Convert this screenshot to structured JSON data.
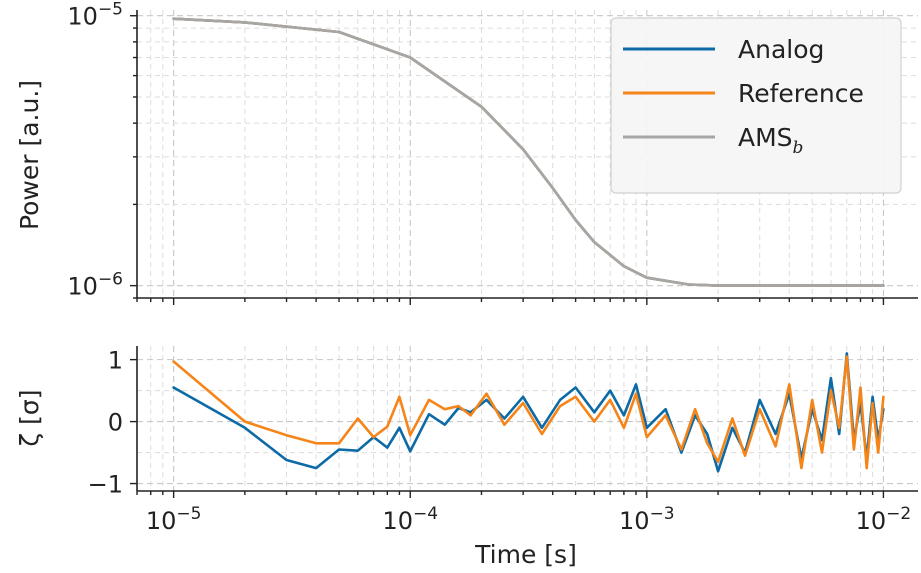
{
  "chart_data": [
    {
      "type": "line",
      "xlabel": "",
      "ylabel": "Power [a.u.]",
      "x_scale": "log",
      "y_scale": "log",
      "xlim": [
        7e-06,
        0.014
      ],
      "ylim": [
        9e-07,
        1.05e-05
      ],
      "grid": true,
      "legend_position": "top-right",
      "yticks": [
        {
          "value": 1e-05,
          "base": "10",
          "exp": "−5"
        },
        {
          "value": 1e-06,
          "base": "10",
          "exp": "−6"
        }
      ],
      "series": [
        {
          "name": "Analog",
          "color": "#0c6aa6",
          "x": [
            1e-05,
            2e-05,
            5e-05,
            0.0001,
            0.0002,
            0.0003,
            0.0004,
            0.0005,
            0.0006,
            0.0008,
            0.001,
            0.0015,
            0.002,
            0.003,
            0.005,
            0.007,
            0.01
          ],
          "y": [
            9.75e-06,
            9.45e-06,
            8.7e-06,
            7e-06,
            4.6e-06,
            3.2e-06,
            2.3e-06,
            1.75e-06,
            1.45e-06,
            1.18e-06,
            1.07e-06,
            1.01e-06,
            1e-06,
            1e-06,
            1e-06,
            1e-06,
            1e-06
          ]
        },
        {
          "name": "Reference",
          "color": "#f58518",
          "x": [
            1e-05,
            2e-05,
            5e-05,
            0.0001,
            0.0002,
            0.0003,
            0.0004,
            0.0005,
            0.0006,
            0.0008,
            0.001,
            0.0015,
            0.002,
            0.003,
            0.005,
            0.007,
            0.01
          ],
          "y": [
            9.75e-06,
            9.45e-06,
            8.7e-06,
            7e-06,
            4.6e-06,
            3.2e-06,
            2.3e-06,
            1.75e-06,
            1.45e-06,
            1.18e-06,
            1.07e-06,
            1.01e-06,
            1e-06,
            1e-06,
            1e-06,
            1e-06,
            1e-06
          ]
        },
        {
          "name": "AMS",
          "name_subscript": "b",
          "color": "#a6a6a6",
          "x": [
            1e-05,
            2e-05,
            5e-05,
            0.0001,
            0.0002,
            0.0003,
            0.0004,
            0.0005,
            0.0006,
            0.0008,
            0.001,
            0.0015,
            0.002,
            0.003,
            0.005,
            0.007,
            0.01
          ],
          "y": [
            9.75e-06,
            9.45e-06,
            8.7e-06,
            7e-06,
            4.6e-06,
            3.2e-06,
            2.3e-06,
            1.75e-06,
            1.45e-06,
            1.18e-06,
            1.07e-06,
            1.01e-06,
            1e-06,
            1e-06,
            1e-06,
            1e-06,
            1e-06
          ]
        }
      ]
    },
    {
      "type": "line",
      "xlabel": "Time [s]",
      "ylabel": "ζ [σ]",
      "x_scale": "log",
      "xlim": [
        7e-06,
        0.014
      ],
      "ylim": [
        -1.12,
        1.22
      ],
      "grid": true,
      "xticks": [
        {
          "value": 1e-05,
          "base": "10",
          "exp": "−5"
        },
        {
          "value": 0.0001,
          "base": "10",
          "exp": "−4"
        },
        {
          "value": 0.001,
          "base": "10",
          "exp": "−3"
        },
        {
          "value": 0.01,
          "base": "10",
          "exp": "−2"
        }
      ],
      "yticks": [
        {
          "value": 1,
          "label": "1"
        },
        {
          "value": 0,
          "label": "0"
        },
        {
          "value": -1,
          "label": "−1"
        }
      ],
      "series": [
        {
          "name": "Analog",
          "color": "#0c6aa6",
          "x": [
            1e-05,
            2e-05,
            3e-05,
            4e-05,
            5e-05,
            6e-05,
            7e-05,
            8e-05,
            9e-05,
            0.0001,
            0.00012,
            0.00014,
            0.00016,
            0.00018,
            0.00021,
            0.00025,
            0.0003,
            0.00036,
            0.00043,
            0.0005,
            0.0006,
            0.0007,
            0.0008,
            0.0009,
            0.001,
            0.0012,
            0.0014,
            0.0016,
            0.0018,
            0.002,
            0.0023,
            0.0026,
            0.003,
            0.0035,
            0.004,
            0.0045,
            0.005,
            0.0055,
            0.006,
            0.0065,
            0.007,
            0.0075,
            0.008,
            0.0085,
            0.009,
            0.0095,
            0.01
          ],
          "y": [
            0.55,
            -0.1,
            -0.62,
            -0.75,
            -0.45,
            -0.47,
            -0.25,
            -0.42,
            -0.1,
            -0.48,
            0.12,
            -0.05,
            0.22,
            0.15,
            0.35,
            0.05,
            0.4,
            -0.1,
            0.35,
            0.55,
            0.15,
            0.5,
            0.1,
            0.6,
            -0.1,
            0.2,
            -0.5,
            0.1,
            -0.2,
            -0.8,
            -0.1,
            -0.5,
            0.35,
            -0.2,
            0.45,
            -0.6,
            0.2,
            -0.3,
            0.7,
            -0.2,
            1.1,
            -0.3,
            0.3,
            -0.6,
            0.4,
            -0.3,
            0.2
          ]
        },
        {
          "name": "Reference",
          "color": "#f58518",
          "x": [
            1e-05,
            2e-05,
            3e-05,
            4e-05,
            5e-05,
            6e-05,
            7e-05,
            8e-05,
            9e-05,
            0.0001,
            0.00012,
            0.00014,
            0.00016,
            0.00018,
            0.00021,
            0.00025,
            0.0003,
            0.00036,
            0.00043,
            0.0005,
            0.0006,
            0.0007,
            0.0008,
            0.0009,
            0.001,
            0.0012,
            0.0014,
            0.0016,
            0.0018,
            0.002,
            0.0023,
            0.0026,
            0.003,
            0.0035,
            0.004,
            0.0045,
            0.005,
            0.0055,
            0.006,
            0.0065,
            0.007,
            0.0075,
            0.008,
            0.0085,
            0.009,
            0.0095,
            0.01
          ],
          "y": [
            0.97,
            0.0,
            -0.22,
            -0.35,
            -0.35,
            0.05,
            -0.25,
            -0.08,
            0.4,
            -0.22,
            0.35,
            0.2,
            0.25,
            0.1,
            0.45,
            -0.05,
            0.3,
            -0.2,
            0.25,
            0.4,
            0.0,
            0.35,
            -0.1,
            0.45,
            -0.25,
            0.1,
            -0.45,
            0.2,
            -0.35,
            -0.65,
            0.05,
            -0.55,
            0.2,
            -0.4,
            0.6,
            -0.75,
            0.35,
            -0.5,
            0.5,
            -0.1,
            1.05,
            -0.45,
            0.55,
            -0.75,
            0.3,
            -0.5,
            0.4
          ]
        }
      ]
    }
  ]
}
